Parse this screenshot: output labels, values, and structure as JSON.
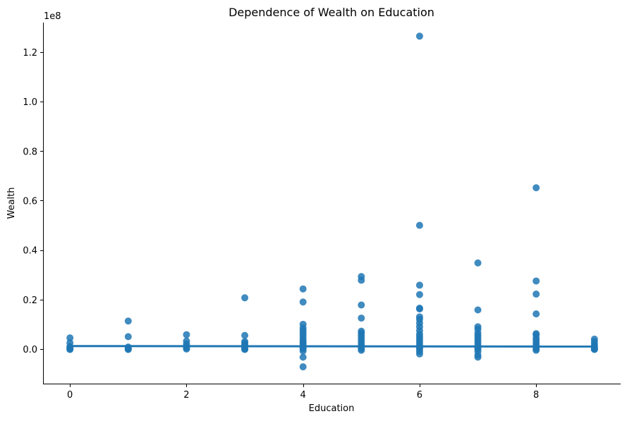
{
  "chart_data": {
    "type": "scatter",
    "title": "Dependence of Wealth on Education",
    "xlabel": "Education",
    "ylabel": "Wealth",
    "y_exponent_label": "1e8",
    "xlim": [
      -0.45,
      9.45
    ],
    "ylim": [
      -0.14,
      1.32
    ],
    "x_ticks": [
      0,
      2,
      4,
      6,
      8
    ],
    "x_tick_labels": [
      "0",
      "2",
      "4",
      "6",
      "8"
    ],
    "y_ticks": [
      0.0,
      0.2,
      0.4,
      0.6,
      0.8,
      1.0,
      1.2
    ],
    "y_tick_labels": [
      "0.0",
      "0.2",
      "0.4",
      "0.6",
      "0.8",
      "1.0",
      "1.2"
    ],
    "grid": false,
    "colors": {
      "points": "#1f77b4",
      "regression_line": "#1f77b4"
    },
    "series": [
      {
        "kind": "points",
        "points": [
          [
            0,
            0.045
          ],
          [
            0,
            0.025
          ],
          [
            0,
            0.01
          ],
          [
            0,
            0.005
          ],
          [
            0,
            0.0
          ],
          [
            0,
            -0.002
          ],
          [
            1,
            0.113
          ],
          [
            1,
            0.05
          ],
          [
            1,
            0.008
          ],
          [
            1,
            0.004
          ],
          [
            1,
            0.0
          ],
          [
            1,
            -0.002
          ],
          [
            2,
            0.058
          ],
          [
            2,
            0.032
          ],
          [
            2,
            0.02
          ],
          [
            2,
            0.01
          ],
          [
            2,
            0.004
          ],
          [
            2,
            0.0
          ],
          [
            3,
            0.207
          ],
          [
            3,
            0.055
          ],
          [
            3,
            0.03
          ],
          [
            3,
            0.025
          ],
          [
            3,
            0.018
          ],
          [
            3,
            0.012
          ],
          [
            3,
            0.007
          ],
          [
            3,
            0.003
          ],
          [
            3,
            0.0
          ],
          [
            3,
            -0.002
          ],
          [
            4,
            0.243
          ],
          [
            4,
            0.19
          ],
          [
            4,
            0.1
          ],
          [
            4,
            0.085
          ],
          [
            4,
            0.075
          ],
          [
            4,
            0.065
          ],
          [
            4,
            0.055
          ],
          [
            4,
            0.045
          ],
          [
            4,
            0.035
          ],
          [
            4,
            0.028
          ],
          [
            4,
            0.02
          ],
          [
            4,
            0.012
          ],
          [
            4,
            0.005
          ],
          [
            4,
            0.0
          ],
          [
            4,
            -0.008
          ],
          [
            4,
            -0.033
          ],
          [
            4,
            -0.072
          ],
          [
            5,
            0.293
          ],
          [
            5,
            0.278
          ],
          [
            5,
            0.178
          ],
          [
            5,
            0.125
          ],
          [
            5,
            0.072
          ],
          [
            5,
            0.065
          ],
          [
            5,
            0.055
          ],
          [
            5,
            0.045
          ],
          [
            5,
            0.035
          ],
          [
            5,
            0.025
          ],
          [
            5,
            0.015
          ],
          [
            5,
            0.008
          ],
          [
            5,
            0.0
          ],
          [
            5,
            -0.005
          ],
          [
            6,
            1.265
          ],
          [
            6,
            0.5
          ],
          [
            6,
            0.258
          ],
          [
            6,
            0.22
          ],
          [
            6,
            0.165
          ],
          [
            6,
            0.162
          ],
          [
            6,
            0.13
          ],
          [
            6,
            0.12
          ],
          [
            6,
            0.105
          ],
          [
            6,
            0.09
          ],
          [
            6,
            0.075
          ],
          [
            6,
            0.06
          ],
          [
            6,
            0.05
          ],
          [
            6,
            0.04
          ],
          [
            6,
            0.03
          ],
          [
            6,
            0.02
          ],
          [
            6,
            0.01
          ],
          [
            6,
            0.005
          ],
          [
            6,
            0.0
          ],
          [
            6,
            -0.01
          ],
          [
            6,
            -0.02
          ],
          [
            7,
            0.348
          ],
          [
            7,
            0.158
          ],
          [
            7,
            0.09
          ],
          [
            7,
            0.08
          ],
          [
            7,
            0.065
          ],
          [
            7,
            0.055
          ],
          [
            7,
            0.045
          ],
          [
            7,
            0.035
          ],
          [
            7,
            0.025
          ],
          [
            7,
            0.015
          ],
          [
            7,
            0.005
          ],
          [
            7,
            0.0
          ],
          [
            7,
            -0.01
          ],
          [
            7,
            -0.025
          ],
          [
            7,
            -0.033
          ],
          [
            8,
            0.652
          ],
          [
            8,
            0.275
          ],
          [
            8,
            0.222
          ],
          [
            8,
            0.142
          ],
          [
            8,
            0.062
          ],
          [
            8,
            0.058
          ],
          [
            8,
            0.045
          ],
          [
            8,
            0.035
          ],
          [
            8,
            0.025
          ],
          [
            8,
            0.015
          ],
          [
            8,
            0.008
          ],
          [
            8,
            0.0
          ],
          [
            8,
            -0.005
          ],
          [
            9,
            0.04
          ],
          [
            9,
            0.03
          ],
          [
            9,
            0.02
          ],
          [
            9,
            0.012
          ],
          [
            9,
            0.006
          ],
          [
            9,
            0.002
          ],
          [
            9,
            0.0
          ],
          [
            9,
            -0.002
          ]
        ]
      },
      {
        "kind": "regression-line",
        "x": [
          0,
          9
        ],
        "y": [
          0.012,
          0.01
        ]
      }
    ]
  }
}
